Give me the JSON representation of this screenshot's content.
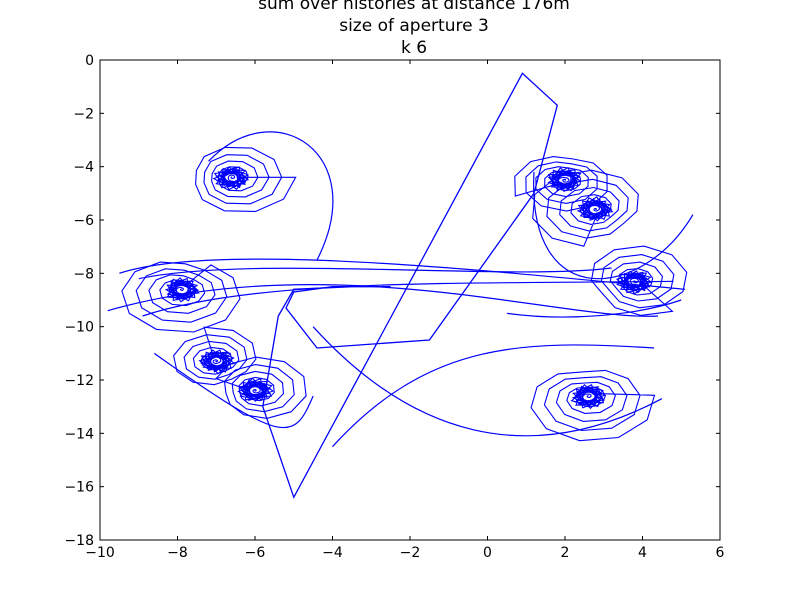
{
  "chart_data": {
    "type": "line",
    "title_lines": [
      "sum over histories  at distance 176m",
      "size of aperture 3",
      "k 6"
    ],
    "xlim": [
      -10,
      6
    ],
    "ylim": [
      -18,
      0
    ],
    "xticks": [
      -10,
      -8,
      -6,
      -4,
      -2,
      0,
      2,
      4,
      6
    ],
    "yticks": [
      0,
      -2,
      -4,
      -6,
      -8,
      -10,
      -12,
      -14,
      -16,
      -18
    ],
    "xtick_labels": [
      "−10",
      "−8",
      "−6",
      "−4",
      "−2",
      "0",
      "2",
      "4",
      "6"
    ],
    "ytick_labels": [
      "0",
      "−2",
      "−4",
      "−6",
      "−8",
      "−10",
      "−12",
      "−14",
      "−16",
      "−18"
    ],
    "grid": false,
    "line_color": "#0000ff",
    "spirals": [
      {
        "center": [
          -6.6,
          -4.4
        ],
        "r_max": 1.65,
        "side": "left"
      },
      {
        "center": [
          -7.9,
          -8.6
        ],
        "r_max": 1.9,
        "side": "left"
      },
      {
        "center": [
          -7.0,
          -11.3
        ],
        "r_max": 1.4,
        "side": "left"
      },
      {
        "center": [
          -6.0,
          -12.4
        ],
        "r_max": 1.5,
        "side": "left"
      },
      {
        "center": [
          2.0,
          -4.5
        ],
        "r_max": 1.5,
        "side": "right"
      },
      {
        "center": [
          2.8,
          -5.6
        ],
        "r_max": 1.8,
        "side": "right"
      },
      {
        "center": [
          3.8,
          -8.3
        ],
        "r_max": 1.7,
        "side": "right"
      },
      {
        "center": [
          2.6,
          -12.6
        ],
        "r_max": 1.9,
        "side": "right"
      }
    ],
    "central_path": {
      "x": [
        -3.5,
        -5.0,
        -5.4,
        -5.8,
        -5.0,
        0.9,
        1.8,
        1.2,
        -1.5,
        -4.4,
        -5.2,
        -5.0,
        -4.0,
        -2.5
      ],
      "y": [
        -8.5,
        -8.6,
        -9.6,
        -13.0,
        -16.4,
        -0.5,
        -1.7,
        -5.0,
        -10.5,
        -10.8,
        -9.3,
        -8.7,
        -8.5,
        -8.5
      ]
    }
  }
}
